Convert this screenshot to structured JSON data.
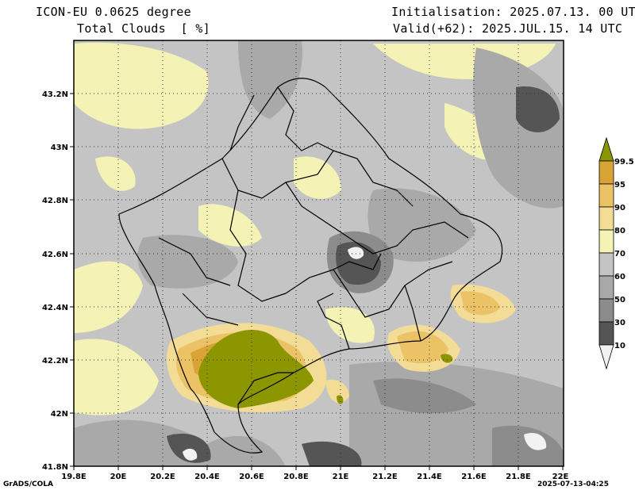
{
  "header": {
    "model": "ICON-EU 0.0625 degree",
    "variable": "Total Clouds  [ %]",
    "init": "Initialisation: 2025.07.13. 00 UTC",
    "valid": "Valid(+62): 2025.JUL.15. 14 UTC"
  },
  "footer": {
    "left": "GrADS/COLA",
    "right": "2025-07-13-04:25"
  },
  "map": {
    "lon_ticks": [
      "19.8E",
      "20E",
      "20.2E",
      "20.4E",
      "20.6E",
      "20.8E",
      "21E",
      "21.2E",
      "21.4E",
      "21.6E",
      "21.8E",
      "22E"
    ],
    "lat_ticks": [
      "41.8N",
      "42N",
      "42.2N",
      "42.4N",
      "42.6N",
      "42.8N",
      "43N",
      "43.2N"
    ]
  },
  "colorbar": {
    "labels": [
      "10",
      "30",
      "50",
      "60",
      "70",
      "80",
      "90",
      "95",
      "99.5"
    ],
    "colors": [
      "#f2f2f2",
      "#555555",
      "#8c8c8c",
      "#a9a9a9",
      "#c4c4c4",
      "#f4f2b4",
      "#f2dc96",
      "#ecc266",
      "#d9a436",
      "#8c9600"
    ]
  }
}
